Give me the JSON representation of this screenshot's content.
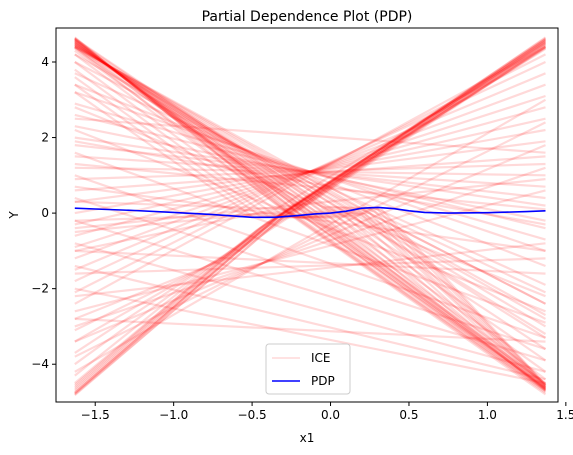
{
  "chart_data": {
    "type": "line",
    "title": "Partial Dependence Plot (PDP)",
    "xlabel": "x1",
    "ylabel": "Y",
    "xlim": [
      -1.75,
      1.45
    ],
    "ylim": [
      -5.0,
      4.9
    ],
    "x_range": [
      -1.63,
      1.37
    ],
    "xticks": [
      "-1.5",
      "-1.0",
      "-0.5",
      "0.0",
      "0.5",
      "1.0",
      "1.5"
    ],
    "xtick_values": [
      -1.5,
      -1.0,
      -0.5,
      0.0,
      0.5,
      1.0,
      1.5
    ],
    "yticks": [
      "4",
      "2",
      "0",
      "-2",
      "-4"
    ],
    "ytick_values": [
      4,
      2,
      0,
      -2,
      -4
    ],
    "grid": false,
    "legend": {
      "position": "bottom-center",
      "entries": [
        "ICE",
        "PDP"
      ]
    },
    "ice_color": "#ff0000",
    "ice_alpha": 0.15,
    "pdp_color": "#0000ff",
    "ice_series": {
      "name": "ICE",
      "down": [
        {
          "kink": -0.28,
          "knee_y": 0.05,
          "end": -4.75
        },
        {
          "kink": -0.26,
          "knee_y": 0.02,
          "end": -4.72
        },
        {
          "kink": -0.24,
          "knee_y": 0.0,
          "end": -4.7
        },
        {
          "kink": -0.22,
          "knee_y": 0.06,
          "end": -4.68
        },
        {
          "kink": -0.2,
          "knee_y": -0.02,
          "end": -4.65
        },
        {
          "kink": -0.18,
          "knee_y": 0.04,
          "end": -4.62
        },
        {
          "kink": -0.15,
          "knee_y": -0.05,
          "end": -4.6
        },
        {
          "kink": -0.12,
          "knee_y": -0.08,
          "end": -4.55
        },
        {
          "kink": -0.08,
          "knee_y": -0.1,
          "end": -4.5
        },
        {
          "kink": -0.04,
          "knee_y": -0.12,
          "end": -4.4
        },
        {
          "kink": 0.0,
          "knee_y": -0.12,
          "end": -4.2
        },
        {
          "kink": 0.05,
          "knee_y": -0.12,
          "end": -3.9
        },
        {
          "kink": 0.1,
          "knee_y": -0.13,
          "end": -3.6
        },
        {
          "kink": 0.15,
          "knee_y": -0.13,
          "end": -3.3
        },
        {
          "kink": 0.2,
          "knee_y": -0.14,
          "end": -3.0
        },
        {
          "kink": 0.25,
          "knee_y": -0.12,
          "end": -2.7
        },
        {
          "kink": 0.3,
          "knee_y": -0.12,
          "end": -2.4
        },
        {
          "kink": 0.34,
          "knee_y": -0.1,
          "end": -2.1
        },
        {
          "kink": -0.3,
          "knee_y": 0.08,
          "end": -4.8
        },
        {
          "kink": -0.1,
          "knee_y": -0.06,
          "end": -4.52
        }
      ],
      "up": [
        {
          "start": -4.8,
          "kink": -0.3,
          "knee_y": -0.1
        },
        {
          "start": -4.78,
          "kink": -0.32,
          "knee_y": -0.05
        },
        {
          "start": -4.75,
          "kink": -0.35,
          "knee_y": -0.15
        },
        {
          "start": -4.7,
          "kink": -0.37,
          "knee_y": -0.2
        },
        {
          "start": -4.65,
          "kink": -0.4,
          "knee_y": -0.25
        },
        {
          "start": -4.6,
          "kink": -0.42,
          "knee_y": -0.3
        },
        {
          "start": -4.5,
          "kink": -0.45,
          "knee_y": -0.4
        },
        {
          "start": -4.3,
          "kink": -0.5,
          "knee_y": -0.55
        },
        {
          "start": -4.0,
          "kink": -0.55,
          "knee_y": -0.75
        },
        {
          "start": -3.7,
          "kink": -0.6,
          "knee_y": -0.9
        },
        {
          "start": -3.4,
          "kink": -0.62,
          "knee_y": -1.0
        },
        {
          "start": -3.1,
          "kink": -0.64,
          "knee_y": -1.1
        },
        {
          "start": -2.8,
          "kink": -0.66,
          "knee_y": -1.2
        },
        {
          "start": -4.82,
          "kink": -0.28,
          "knee_y": -0.02
        },
        {
          "start": -4.76,
          "kink": -0.33,
          "knee_y": -0.08
        },
        {
          "start": -4.55,
          "kink": -0.47,
          "knee_y": -0.45
        }
      ],
      "left_high": [
        {
          "y_left": 4.6,
          "kink": 0.3,
          "knee_y": 0.1
        },
        {
          "y_left": 4.55,
          "kink": 0.28,
          "knee_y": 0.05
        },
        {
          "y_left": 4.5,
          "kink": 0.25,
          "knee_y": 0.0
        },
        {
          "y_left": 4.45,
          "kink": 0.22,
          "knee_y": -0.02
        },
        {
          "y_left": 4.4,
          "kink": 0.2,
          "knee_y": -0.05
        },
        {
          "y_left": 4.3,
          "kink": 0.15,
          "knee_y": -0.08
        },
        {
          "y_left": 4.2,
          "kink": 0.1,
          "knee_y": -0.1
        },
        {
          "y_left": 4.0,
          "kink": 0.05,
          "knee_y": -0.12
        },
        {
          "y_left": 3.8,
          "kink": 0.0,
          "knee_y": -0.12
        },
        {
          "y_left": 3.6,
          "kink": -0.05,
          "knee_y": -0.12
        },
        {
          "y_left": 3.4,
          "kink": -0.1,
          "knee_y": -0.12
        },
        {
          "y_left": 3.2,
          "kink": -0.15,
          "knee_y": -0.13
        },
        {
          "y_left": 4.62,
          "kink": 0.32,
          "knee_y": 0.12
        }
      ],
      "rising_right": [
        {
          "y_left": -0.2,
          "kink": -0.25,
          "knee_y": 0.0,
          "end": 4.6
        },
        {
          "y_left": -0.5,
          "kink": -0.3,
          "knee_y": 0.05,
          "end": 4.5
        },
        {
          "y_left": -1.0,
          "kink": -0.35,
          "knee_y": 0.1,
          "end": 4.4
        },
        {
          "y_left": 0.3,
          "kink": -0.2,
          "knee_y": 0.1,
          "end": 4.55
        }
      ],
      "straight": [
        {
          "y0": 3.4,
          "y1": -1.4
        },
        {
          "y0": 3.2,
          "y1": -1.0
        },
        {
          "y0": 2.9,
          "y1": -0.7
        },
        {
          "y0": 2.6,
          "y1": -0.4
        },
        {
          "y0": 2.3,
          "y1": -0.2
        },
        {
          "y0": 2.0,
          "y1": 0.2
        },
        {
          "y0": 1.8,
          "y1": 0.4
        },
        {
          "y0": 1.5,
          "y1": 0.7
        },
        {
          "y0": 1.2,
          "y1": 1.0
        },
        {
          "y0": 0.9,
          "y1": 1.3
        },
        {
          "y0": 0.6,
          "y1": 1.5
        },
        {
          "y0": 0.3,
          "y1": 1.9
        },
        {
          "y0": 0.0,
          "y1": 2.2
        },
        {
          "y0": -0.3,
          "y1": 2.5
        },
        {
          "y0": -0.6,
          "y1": 2.8
        },
        {
          "y0": -0.9,
          "y1": 3.1
        },
        {
          "y0": -1.2,
          "y1": 3.4
        },
        {
          "y0": -1.5,
          "y1": 3.7
        },
        {
          "y0": -1.8,
          "y1": 4.0
        },
        {
          "y0": -2.1,
          "y1": 4.2
        },
        {
          "y0": -2.4,
          "y1": 4.4
        },
        {
          "y0": 3.7,
          "y1": -1.9
        },
        {
          "y0": 4.0,
          "y1": -2.4
        },
        {
          "y0": 4.2,
          "y1": -2.8
        },
        {
          "y0": 4.4,
          "y1": -3.2
        },
        {
          "y0": 2.8,
          "y1": -2.2
        },
        {
          "y0": 2.2,
          "y1": -2.6
        },
        {
          "y0": 1.6,
          "y1": -2.9
        },
        {
          "y0": 1.0,
          "y1": -3.3
        },
        {
          "y0": 0.4,
          "y1": -3.6
        },
        {
          "y0": -0.2,
          "y1": -3.9
        },
        {
          "y0": -0.8,
          "y1": -4.2
        },
        {
          "y0": -1.4,
          "y1": -4.4
        },
        {
          "y0": -2.0,
          "y1": -4.5
        },
        {
          "y0": -2.6,
          "y1": 0.6
        },
        {
          "y0": -3.0,
          "y1": 1.2
        },
        {
          "y0": -3.4,
          "y1": 1.8
        },
        {
          "y0": -3.8,
          "y1": 2.4
        },
        {
          "y0": -4.2,
          "y1": 3.0
        },
        {
          "y0": -2.2,
          "y1": -0.8
        },
        {
          "y0": -1.6,
          "y1": -1.2
        },
        {
          "y0": -1.0,
          "y1": -1.6
        },
        {
          "y0": 1.9,
          "y1": -0.3
        },
        {
          "y0": 1.3,
          "y1": 0.1
        },
        {
          "y0": 0.7,
          "y1": -1.0
        },
        {
          "y0": -0.4,
          "y1": 0.9
        },
        {
          "y0": 2.5,
          "y1": 1.6
        },
        {
          "y0": -2.8,
          "y1": -3.4
        }
      ]
    },
    "series": [
      {
        "name": "PDP",
        "x": [
          -1.63,
          -1.5,
          -1.25,
          -1.0,
          -0.75,
          -0.5,
          -0.35,
          -0.2,
          -0.1,
          0.0,
          0.1,
          0.2,
          0.3,
          0.4,
          0.5,
          0.6,
          0.75,
          1.0,
          1.25,
          1.37
        ],
        "y": [
          0.13,
          0.11,
          0.07,
          0.02,
          -0.04,
          -0.11,
          -0.11,
          -0.06,
          -0.02,
          0.0,
          0.05,
          0.13,
          0.15,
          0.12,
          0.06,
          0.02,
          0.0,
          0.01,
          0.04,
          0.06
        ]
      }
    ]
  }
}
